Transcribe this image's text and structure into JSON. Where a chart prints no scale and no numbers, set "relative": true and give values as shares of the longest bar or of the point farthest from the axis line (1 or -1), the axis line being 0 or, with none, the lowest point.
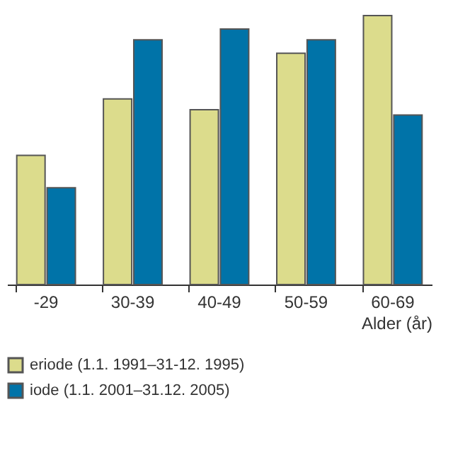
{
  "chart_data": {
    "type": "bar",
    "relative": true,
    "xlabel": "Alder  (år)",
    "categories": [
      "-29",
      "30-39",
      "40-49",
      "50-59",
      "60-69"
    ],
    "series": [
      {
        "name": "eriode (1.1. 1991–31-12. 1995)",
        "color": "#dcdc8c",
        "values": [
          0.48,
          0.69,
          0.65,
          0.86,
          1
        ]
      },
      {
        "name": "iode (1.1. 2001–31.12. 2005)",
        "color": "#0073a8",
        "values": [
          0.36,
          0.91,
          0.95,
          0.91,
          0.63
        ]
      }
    ],
    "legend": "bottom left",
    "grid": false
  }
}
